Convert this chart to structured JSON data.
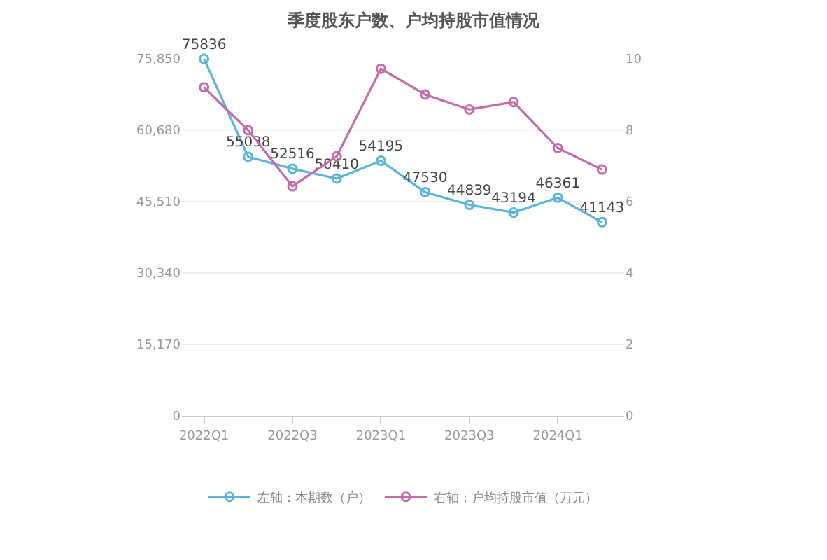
{
  "chart_data": {
    "type": "line",
    "title": "季度股东户数、户均持股市值情况",
    "categories": [
      "2022Q1",
      null,
      "2022Q3",
      null,
      "2023Q1",
      null,
      "2023Q3",
      null,
      "2024Q1",
      null
    ],
    "series": [
      {
        "name": "左轴：本期数（户）",
        "color": "#5ab4dc",
        "values": [
          75836,
          55038,
          52516,
          50410,
          54195,
          47530,
          44839,
          43194,
          46361,
          41143
        ],
        "value_labels": [
          "75836",
          "55038",
          "52516",
          "50410",
          "54195",
          "47530",
          "44839",
          "43194",
          "46361",
          "41143"
        ]
      },
      {
        "name": "右轴：户均持股市值（万元）",
        "color": "#c46ca8",
        "axis": "y2",
        "values": [
          9.2,
          8.0,
          6.43,
          7.27,
          9.72,
          9.0,
          8.58,
          8.79,
          7.5,
          6.9
        ]
      }
    ],
    "ylim": [
      0,
      75850
    ],
    "yticks": [
      {
        "value": 0,
        "label": "0"
      },
      {
        "value": 15170,
        "label": "15,170"
      },
      {
        "value": 30340,
        "label": "30,340"
      },
      {
        "value": 45510,
        "label": "45,510"
      },
      {
        "value": 60680,
        "label": "60,680"
      },
      {
        "value": 75850,
        "label": "75,850"
      }
    ],
    "y2lim": [
      0,
      10
    ],
    "y2ticks": [
      0,
      2,
      4,
      6,
      8,
      10
    ],
    "grid": "y",
    "legend": "bottom",
    "marker": "circle",
    "line_style": "solid"
  }
}
